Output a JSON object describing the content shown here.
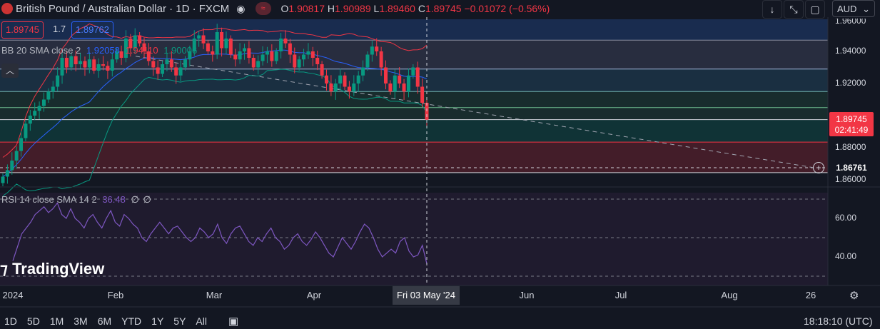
{
  "header": {
    "symbol_title": "British Pound / Australian Dollar · 1D · FXCM",
    "ohlc": {
      "o_label": "O",
      "o": "1.90817",
      "h_label": "H",
      "h": "1.90989",
      "l_label": "L",
      "l": "1.89460",
      "c_label": "C",
      "c": "1.89745",
      "change": "−0.01072 (−0.56%)"
    },
    "sell_price": "1.89745",
    "spread": "1.7",
    "buy_price": "1.89762"
  },
  "toolbar": {
    "currency": "AUD"
  },
  "bb_legend": {
    "label": "BB 20 SMA close 2",
    "basis": "1.92058",
    "upper": "1.94110",
    "lower": "1.90006"
  },
  "rsi_legend": {
    "label": "RSI 14 close SMA 14 2",
    "value": "36.48",
    "extra1": "∅",
    "extra2": "∅"
  },
  "colors": {
    "bg": "#131722",
    "up": "#089981",
    "down": "#f23645",
    "bb_basis": "#2962ff",
    "bb_upper": "#f23645",
    "bb_lower": "#089981",
    "rsi": "#7e57c2"
  },
  "price_axis": {
    "ticks": [
      "1.96000",
      "1.94000",
      "1.92000",
      "1.88000",
      "1.86000"
    ],
    "last_price": "1.89745",
    "countdown": "02:41:49",
    "crosshair_price": "1.86761"
  },
  "rsi_axis": {
    "ticks": [
      "60.00",
      "40.00"
    ]
  },
  "time_axis": {
    "ticks": [
      "2024",
      "Feb",
      "Mar",
      "Apr",
      "Jun",
      "Jul",
      "Aug",
      "26"
    ],
    "crosshair_label": "Fri 03 May '24"
  },
  "bottom_bar": {
    "ranges": [
      "1D",
      "5D",
      "1M",
      "3M",
      "6M",
      "YTD",
      "1Y",
      "5Y",
      "All"
    ],
    "clock": "18:18:10 (UTC)"
  },
  "watermark": "TradingView",
  "chart_data": {
    "type": "candlestick",
    "price_levels": [
      1.96,
      1.94,
      1.92,
      1.88,
      1.86
    ],
    "ylim": [
      1.855,
      1.965
    ],
    "last_close": 1.89745,
    "horizontal_levels": [
      1.947,
      1.929,
      1.915,
      1.905,
      1.8975,
      1.8835,
      1.8645
    ],
    "zones": [
      {
        "from": 1.8835,
        "to": 1.8645,
        "color": "#f23645"
      },
      {
        "from": 1.8975,
        "to": 1.8835,
        "color": "#089981"
      }
    ],
    "closes": [
      1.862,
      1.866,
      1.872,
      1.878,
      1.886,
      1.895,
      1.9,
      1.903,
      1.906,
      1.91,
      1.915,
      1.918,
      1.925,
      1.936,
      1.93,
      1.937,
      1.932,
      1.934,
      1.93,
      1.935,
      1.928,
      1.932,
      1.931,
      1.928,
      1.935,
      1.94,
      1.936,
      1.948,
      1.942,
      1.95,
      1.945,
      1.94,
      1.934,
      1.93,
      1.926,
      1.932,
      1.935,
      1.93,
      1.925,
      1.93,
      1.935,
      1.94,
      1.948,
      1.95,
      1.945,
      1.94,
      1.938,
      1.952,
      1.942,
      1.948,
      1.938,
      1.935,
      1.94,
      1.942,
      1.936,
      1.93,
      1.934,
      1.938,
      1.94,
      1.934,
      1.94,
      1.948,
      1.945,
      1.938,
      1.93,
      1.935,
      1.938,
      1.94,
      1.936,
      1.932,
      1.925,
      1.92,
      1.915,
      1.92,
      1.925,
      1.918,
      1.915,
      1.92,
      1.925,
      1.93,
      1.938,
      1.943,
      1.94,
      1.93,
      1.92,
      1.915,
      1.925,
      1.92,
      1.915,
      1.925,
      1.93,
      1.918,
      1.908,
      1.89745
    ],
    "rsi": [
      38,
      45,
      52,
      55,
      58,
      62,
      64,
      66,
      63,
      65,
      68,
      62,
      60,
      65,
      60,
      58,
      55,
      60,
      62,
      58,
      55,
      60,
      64,
      58,
      56,
      62,
      60,
      57,
      55,
      50,
      48,
      52,
      55,
      58,
      55,
      52,
      55,
      56,
      53,
      50,
      48,
      50,
      55,
      53,
      50,
      52,
      57,
      50,
      47,
      52,
      55,
      56,
      52,
      48,
      46,
      50,
      48,
      52,
      55,
      50,
      48,
      44,
      46,
      50,
      52,
      48,
      46,
      49,
      53,
      50,
      46,
      42,
      40,
      45,
      50,
      47,
      44,
      48,
      53,
      57,
      55,
      50,
      44,
      40,
      42,
      44,
      42,
      48,
      50,
      43,
      40,
      41,
      46,
      36.48
    ]
  }
}
